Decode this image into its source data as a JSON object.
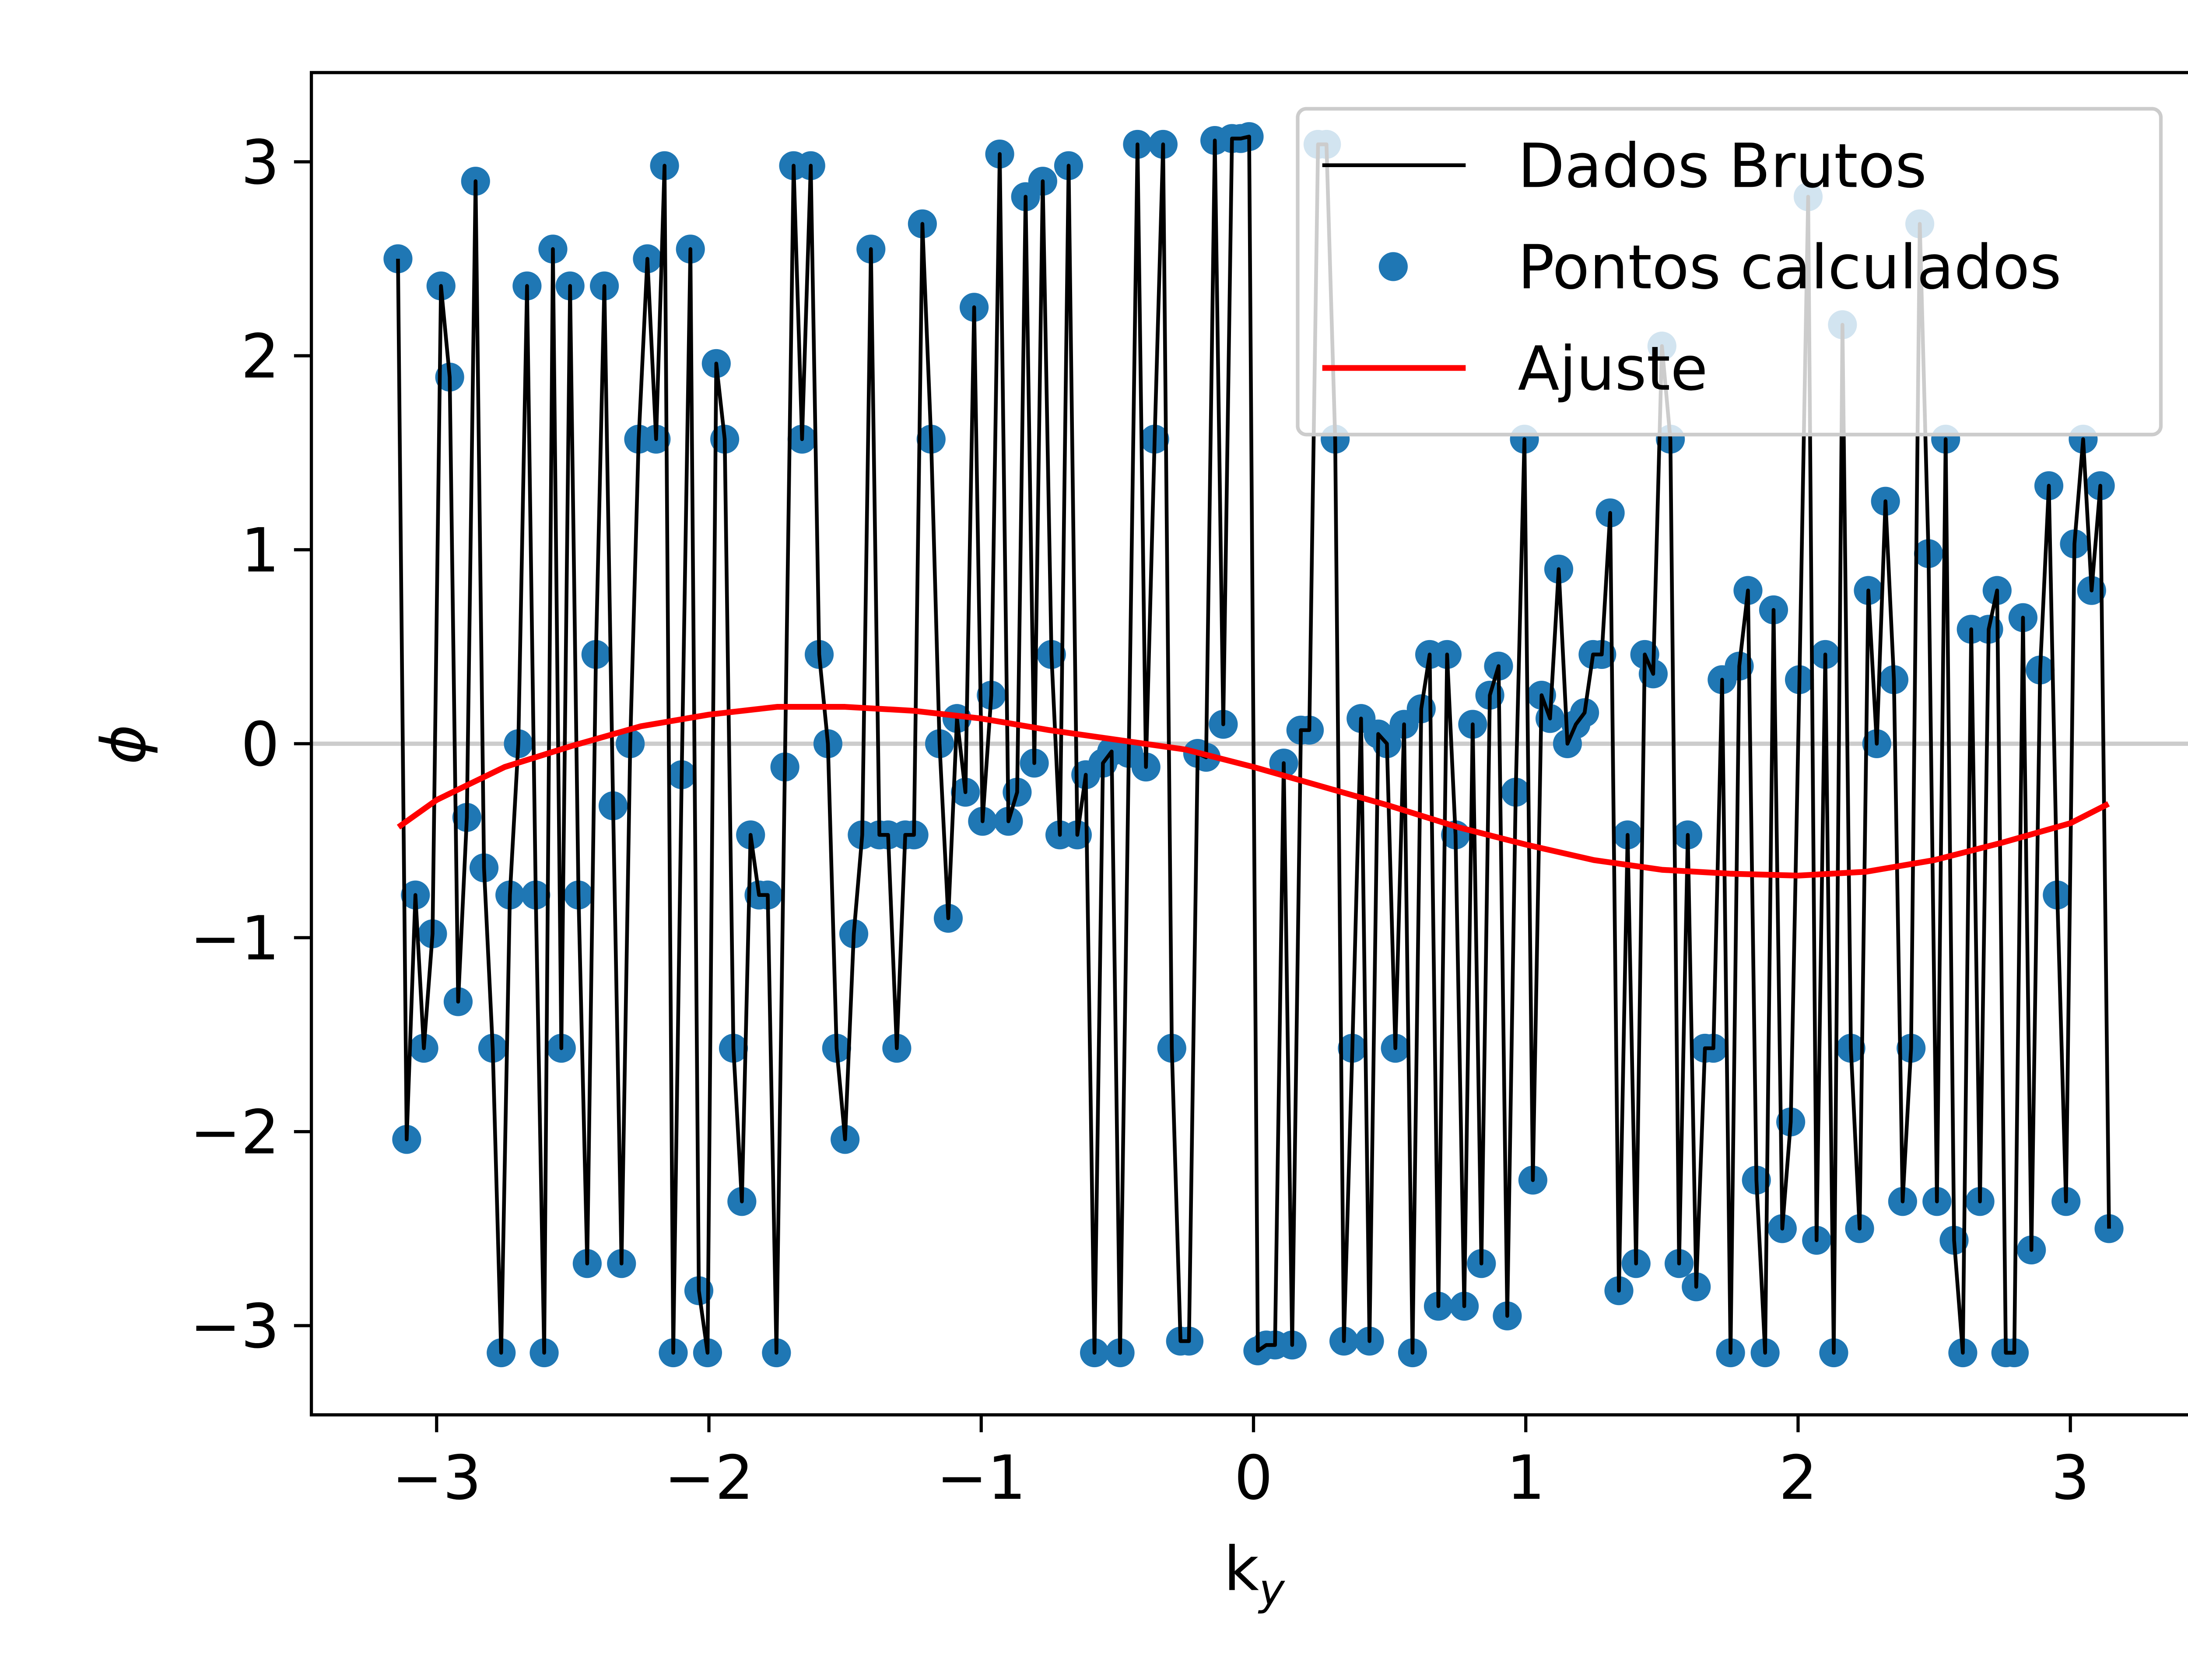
{
  "chart_data": {
    "type": "line",
    "xlabel": "k",
    "xlabel_sub": "y",
    "ylabel": "ϕ",
    "xlim": [
      -3.46,
      3.46
    ],
    "ylim": [
      -3.46,
      3.46
    ],
    "xticks": [
      {
        "value": -3,
        "label": "−3"
      },
      {
        "value": -2,
        "label": "−2"
      },
      {
        "value": -1,
        "label": "−1"
      },
      0,
      1,
      2,
      3
    ],
    "yticks": [
      {
        "value": -3,
        "label": "−3"
      },
      {
        "value": -2,
        "label": "−2"
      },
      {
        "value": -1,
        "label": "−1"
      },
      0,
      1,
      2,
      3
    ],
    "axhline": 0,
    "axhline_color": "#cccccc",
    "legend": "upper right",
    "x": [
      -3.142,
      -3.11,
      -3.078,
      -3.047,
      -3.015,
      -2.984,
      -2.952,
      -2.921,
      -2.889,
      -2.857,
      -2.826,
      -2.794,
      -2.763,
      -2.731,
      -2.7,
      -2.668,
      -2.636,
      -2.605,
      -2.573,
      -2.542,
      -2.51,
      -2.479,
      -2.447,
      -2.415,
      -2.384,
      -2.352,
      -2.321,
      -2.289,
      -2.258,
      -2.226,
      -2.194,
      -2.163,
      -2.131,
      -2.1,
      -2.068,
      -2.037,
      -2.005,
      -1.973,
      -1.942,
      -1.91,
      -1.879,
      -1.847,
      -1.816,
      -1.784,
      -1.752,
      -1.721,
      -1.689,
      -1.658,
      -1.626,
      -1.595,
      -1.563,
      -1.531,
      -1.5,
      -1.468,
      -1.437,
      -1.405,
      -1.374,
      -1.342,
      -1.31,
      -1.279,
      -1.247,
      -1.216,
      -1.184,
      -1.153,
      -1.121,
      -1.089,
      -1.058,
      -1.026,
      -0.995,
      -0.963,
      -0.932,
      -0.9,
      -0.868,
      -0.837,
      -0.805,
      -0.774,
      -0.742,
      -0.711,
      -0.679,
      -0.647,
      -0.616,
      -0.584,
      -0.553,
      -0.521,
      -0.49,
      -0.458,
      -0.426,
      -0.395,
      -0.363,
      -0.332,
      -0.3,
      -0.268,
      -0.237,
      -0.205,
      -0.174,
      -0.142,
      -0.111,
      -0.079,
      -0.047,
      -0.016,
      0.016,
      0.047,
      0.079,
      0.111,
      0.142,
      0.174,
      0.205,
      0.237,
      0.268,
      0.3,
      0.332,
      0.363,
      0.395,
      0.426,
      0.458,
      0.49,
      0.521,
      0.553,
      0.584,
      0.616,
      0.647,
      0.679,
      0.711,
      0.742,
      0.774,
      0.805,
      0.837,
      0.868,
      0.9,
      0.932,
      0.963,
      0.995,
      1.026,
      1.058,
      1.089,
      1.121,
      1.153,
      1.184,
      1.216,
      1.247,
      1.279,
      1.31,
      1.342,
      1.374,
      1.405,
      1.437,
      1.468,
      1.5,
      1.531,
      1.563,
      1.595,
      1.626,
      1.658,
      1.689,
      1.721,
      1.752,
      1.784,
      1.816,
      1.847,
      1.879,
      1.91,
      1.942,
      1.973,
      2.005,
      2.037,
      2.068,
      2.1,
      2.131,
      2.163,
      2.194,
      2.226,
      2.258,
      2.289,
      2.321,
      2.352,
      2.384,
      2.415,
      2.447,
      2.479,
      2.51,
      2.542,
      2.573,
      2.605,
      2.636,
      2.668,
      2.7,
      2.731,
      2.763,
      2.794,
      2.826,
      2.857,
      2.889,
      2.921,
      2.952,
      2.984,
      3.015,
      3.047,
      3.078,
      3.11,
      3.142
    ],
    "series": [
      {
        "name": "Dados Brutos",
        "type": "line",
        "color": "#000000",
        "values": [
          2.5,
          -2.04,
          -0.78,
          -1.57,
          -0.98,
          2.36,
          1.89,
          -1.33,
          -0.38,
          2.9,
          -0.64,
          -1.57,
          -3.14,
          -0.78,
          0,
          2.36,
          -0.78,
          -3.14,
          2.55,
          -1.57,
          2.36,
          -0.78,
          -2.68,
          0.46,
          2.36,
          -0.32,
          -2.68,
          0,
          1.57,
          2.5,
          1.57,
          2.98,
          -3.14,
          -0.16,
          2.55,
          -2.82,
          -3.14,
          1.96,
          1.57,
          -1.57,
          -2.36,
          -0.47,
          -0.78,
          -0.78,
          -3.14,
          -0.12,
          2.98,
          1.57,
          2.98,
          0.46,
          0,
          -1.57,
          -2.04,
          -0.98,
          -0.47,
          2.55,
          -0.47,
          -0.47,
          -1.57,
          -0.47,
          -0.47,
          2.68,
          1.57,
          0,
          -0.9,
          0.13,
          -0.25,
          2.25,
          -0.4,
          0.25,
          3.04,
          -0.4,
          -0.25,
          2.82,
          -0.1,
          2.9,
          0.46,
          -0.47,
          2.98,
          -0.47,
          -0.16,
          -3.14,
          -0.1,
          -0.04,
          -3.14,
          -0.05,
          3.09,
          -0.12,
          1.57,
          3.09,
          -1.57,
          -3.08,
          -3.08,
          -0.05,
          -0.07,
          3.11,
          0.1,
          3.12,
          3.12,
          3.13,
          -3.13,
          -3.1,
          -3.1,
          -0.1,
          -3.1,
          0.07,
          0.07,
          3.09,
          3.09,
          1.57,
          -3.08,
          -1.57,
          0.13,
          -3.08,
          0.05,
          0,
          -1.57,
          0.1,
          -3.14,
          0.18,
          0.46,
          -2.9,
          0.46,
          -0.47,
          -2.9,
          0.1,
          -2.68,
          0.25,
          0.4,
          -2.95,
          -0.25,
          1.57,
          -2.25,
          0.25,
          0.13,
          0.9,
          0,
          0.1,
          0.16,
          0.46,
          0.46,
          1.19,
          -2.82,
          -0.47,
          -2.68,
          0.46,
          0.36,
          2.05,
          1.57,
          -2.68,
          -0.47,
          -2.8,
          -1.57,
          -1.57,
          0.33,
          -3.14,
          0.4,
          0.79,
          -2.25,
          -3.14,
          0.69,
          -2.5,
          -1.95,
          0.33,
          2.82,
          -2.56,
          0.46,
          -3.14,
          2.16,
          -1.57,
          -2.5,
          0.79,
          0,
          1.25,
          0.33,
          -2.36,
          -1.57,
          2.68,
          0.98,
          -2.36,
          1.57,
          -2.56,
          -3.14,
          0.59,
          -2.36,
          0.59,
          0.79,
          -3.14,
          -3.14,
          0.65,
          -2.61,
          0.38,
          1.33,
          -0.78,
          -2.36,
          1.03,
          1.57,
          0.79,
          1.33,
          -2.5
        ]
      },
      {
        "name": "Pontos calculados",
        "type": "scatter",
        "color": "#1f77b4",
        "values": [
          2.5,
          -2.04,
          -0.78,
          -1.57,
          -0.98,
          2.36,
          1.89,
          -1.33,
          -0.38,
          2.9,
          -0.64,
          -1.57,
          -3.14,
          -0.78,
          0,
          2.36,
          -0.78,
          -3.14,
          2.55,
          -1.57,
          2.36,
          -0.78,
          -2.68,
          0.46,
          2.36,
          -0.32,
          -2.68,
          0,
          1.57,
          2.5,
          1.57,
          2.98,
          -3.14,
          -0.16,
          2.55,
          -2.82,
          -3.14,
          1.96,
          1.57,
          -1.57,
          -2.36,
          -0.47,
          -0.78,
          -0.78,
          -3.14,
          -0.12,
          2.98,
          1.57,
          2.98,
          0.46,
          0,
          -1.57,
          -2.04,
          -0.98,
          -0.47,
          2.55,
          -0.47,
          -0.47,
          -1.57,
          -0.47,
          -0.47,
          2.68,
          1.57,
          0,
          -0.9,
          0.13,
          -0.25,
          2.25,
          -0.4,
          0.25,
          3.04,
          -0.4,
          -0.25,
          2.82,
          -0.1,
          2.9,
          0.46,
          -0.47,
          2.98,
          -0.47,
          -0.16,
          -3.14,
          -0.1,
          -0.04,
          -3.14,
          -0.05,
          3.09,
          -0.12,
          1.57,
          3.09,
          -1.57,
          -3.08,
          -3.08,
          -0.05,
          -0.07,
          3.11,
          0.1,
          3.12,
          3.12,
          3.13,
          -3.13,
          -3.1,
          -3.1,
          -0.1,
          -3.1,
          0.07,
          0.07,
          3.09,
          3.09,
          1.57,
          -3.08,
          -1.57,
          0.13,
          -3.08,
          0.05,
          0,
          -1.57,
          0.1,
          -3.14,
          0.18,
          0.46,
          -2.9,
          0.46,
          -0.47,
          -2.9,
          0.1,
          -2.68,
          0.25,
          0.4,
          -2.95,
          -0.25,
          1.57,
          -2.25,
          0.25,
          0.13,
          0.9,
          0,
          0.1,
          0.16,
          0.46,
          0.46,
          1.19,
          -2.82,
          -0.47,
          -2.68,
          0.46,
          0.36,
          2.05,
          1.57,
          -2.68,
          -0.47,
          -2.8,
          -1.57,
          -1.57,
          0.33,
          -3.14,
          0.4,
          0.79,
          -2.25,
          -3.14,
          0.69,
          -2.5,
          -1.95,
          0.33,
          2.82,
          -2.56,
          0.46,
          -3.14,
          2.16,
          -1.57,
          -2.5,
          0.79,
          0,
          1.25,
          0.33,
          -2.36,
          -1.57,
          2.68,
          0.98,
          -2.36,
          1.57,
          -2.56,
          -3.14,
          0.59,
          -2.36,
          0.59,
          0.79,
          -3.14,
          -3.14,
          0.65,
          -2.61,
          0.38,
          1.33,
          -0.78,
          -2.36,
          1.03,
          1.57,
          0.79,
          1.33,
          -2.5
        ]
      },
      {
        "name": "Ajuste",
        "type": "line",
        "color": "#ff0000",
        "x": [
          -3.14,
          -3,
          -2.75,
          -2.5,
          -2.25,
          -2,
          -1.75,
          -1.5,
          -1.25,
          -1,
          -0.75,
          -0.5,
          -0.25,
          0,
          0.25,
          0.5,
          0.75,
          1,
          1.25,
          1.5,
          1.75,
          2,
          2.25,
          2.5,
          2.75,
          3,
          3.14
        ],
        "values": [
          -0.43,
          -0.29,
          -0.12,
          -0.01,
          0.09,
          0.15,
          0.19,
          0.19,
          0.17,
          0.13,
          0.07,
          0.02,
          -0.03,
          -0.12,
          -0.22,
          -0.32,
          -0.43,
          -0.52,
          -0.6,
          -0.65,
          -0.67,
          -0.68,
          -0.66,
          -0.6,
          -0.51,
          -0.41,
          -0.31
        ]
      }
    ]
  }
}
